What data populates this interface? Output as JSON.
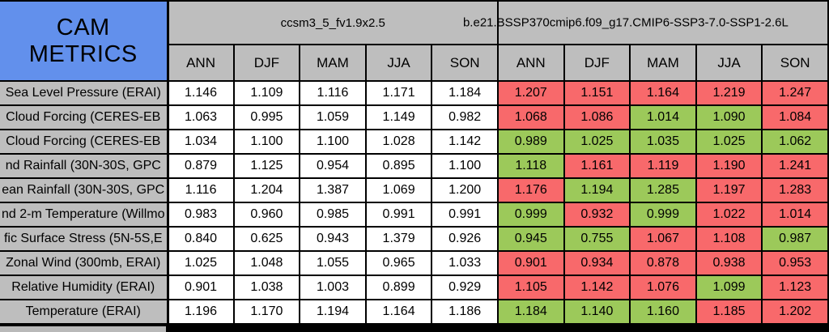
{
  "chart_data": {
    "type": "table",
    "title": "CAM METRICS",
    "models": [
      "ccsm3_5_fv1.9x2.5",
      "b.e21.BSSP370cmip6.f09_g17.CMIP6-SSP3-7.0-SSP1-2.6L"
    ],
    "seasons": [
      "ANN",
      "DJF",
      "MAM",
      "JJA",
      "SON"
    ],
    "value_color_legend": {
      "red": "#F8696B",
      "green": "#9CC95A",
      "title_blue": "#6290EC",
      "header_gray": "#BEBEBE",
      "model1_cell_white": "#FFFFFF"
    },
    "rows": [
      {
        "metric": "Sea Level Pressure (ERAI)",
        "model1_values": [
          1.146,
          1.109,
          1.116,
          1.171,
          1.184
        ],
        "model2_values": [
          1.207,
          1.151,
          1.164,
          1.219,
          1.247
        ],
        "model2_colors": [
          "red",
          "red",
          "red",
          "red",
          "red"
        ]
      },
      {
        "metric": "Cloud Forcing (CERES-EB",
        "model1_values": [
          1.063,
          0.995,
          1.059,
          1.149,
          0.982
        ],
        "model2_values": [
          1.068,
          1.086,
          1.014,
          1.09,
          1.084
        ],
        "model2_colors": [
          "red",
          "red",
          "green",
          "green",
          "red"
        ]
      },
      {
        "metric": "Cloud Forcing (CERES-EB",
        "model1_values": [
          1.034,
          1.1,
          1.1,
          1.028,
          1.142
        ],
        "model2_values": [
          0.989,
          1.025,
          1.035,
          1.025,
          1.062
        ],
        "model2_colors": [
          "green",
          "green",
          "green",
          "green",
          "green"
        ]
      },
      {
        "metric": "nd Rainfall (30N-30S, GPC",
        "model1_values": [
          0.879,
          1.125,
          0.954,
          0.895,
          1.1
        ],
        "model2_values": [
          1.118,
          1.161,
          1.119,
          1.19,
          1.241
        ],
        "model2_colors": [
          "green",
          "red",
          "red",
          "red",
          "red"
        ]
      },
      {
        "metric": "ean Rainfall (30N-30S, GPC",
        "model1_values": [
          1.116,
          1.204,
          1.387,
          1.069,
          1.2
        ],
        "model2_values": [
          1.176,
          1.194,
          1.285,
          1.197,
          1.283
        ],
        "model2_colors": [
          "red",
          "green",
          "green",
          "red",
          "red"
        ]
      },
      {
        "metric": "nd 2-m Temperature (Willmo",
        "model1_values": [
          0.983,
          0.96,
          0.985,
          0.991,
          0.991
        ],
        "model2_values": [
          0.999,
          0.932,
          0.999,
          1.022,
          1.014
        ],
        "model2_colors": [
          "green",
          "red",
          "green",
          "red",
          "red"
        ]
      },
      {
        "metric": "fic Surface Stress (5N-5S,E",
        "model1_values": [
          0.84,
          0.625,
          0.943,
          1.379,
          0.926
        ],
        "model2_values": [
          0.945,
          0.755,
          1.067,
          1.108,
          0.987
        ],
        "model2_colors": [
          "green",
          "green",
          "red",
          "red",
          "green"
        ]
      },
      {
        "metric": "Zonal Wind (300mb, ERAI)",
        "model1_values": [
          1.025,
          1.048,
          1.055,
          0.965,
          1.033
        ],
        "model2_values": [
          0.901,
          0.934,
          0.878,
          0.938,
          0.953
        ],
        "model2_colors": [
          "red",
          "red",
          "red",
          "red",
          "red"
        ]
      },
      {
        "metric": "Relative Humidity (ERAI)",
        "model1_values": [
          0.901,
          1.038,
          1.003,
          0.899,
          0.929
        ],
        "model2_values": [
          1.105,
          1.142,
          1.076,
          1.099,
          1.123
        ],
        "model2_colors": [
          "red",
          "red",
          "red",
          "green",
          "red"
        ]
      },
      {
        "metric": "Temperature (ERAI)",
        "model1_values": [
          1.196,
          1.17,
          1.194,
          1.164,
          1.186
        ],
        "model2_values": [
          1.184,
          1.14,
          1.16,
          1.185,
          1.202
        ],
        "model2_colors": [
          "green",
          "green",
          "green",
          "red",
          "red"
        ]
      }
    ]
  }
}
